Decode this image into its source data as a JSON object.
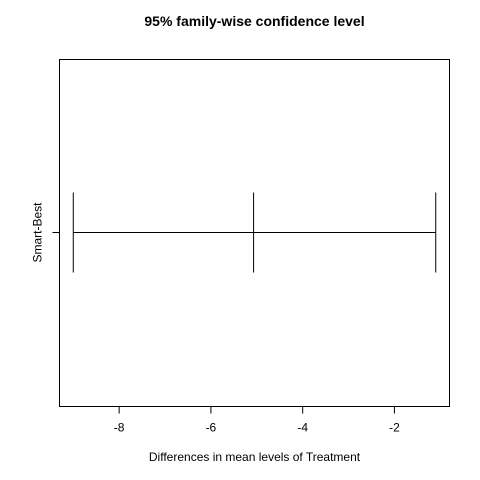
{
  "chart_data": {
    "type": "interval",
    "title": "95% family-wise confidence level",
    "xlabel": "Differences in mean levels of Treatment",
    "ylabel": "",
    "xlim": [
      -9.3,
      -0.8
    ],
    "x_ticks": [
      -8,
      -6,
      -4,
      -2
    ],
    "x_tick_labels": [
      "-8",
      "-6",
      "-4",
      "-2"
    ],
    "grid": false,
    "legend": "none",
    "intervals": [
      {
        "label": "Smart-Best",
        "lower": -9.0,
        "estimate": -5.07,
        "upper": -1.1
      }
    ]
  }
}
